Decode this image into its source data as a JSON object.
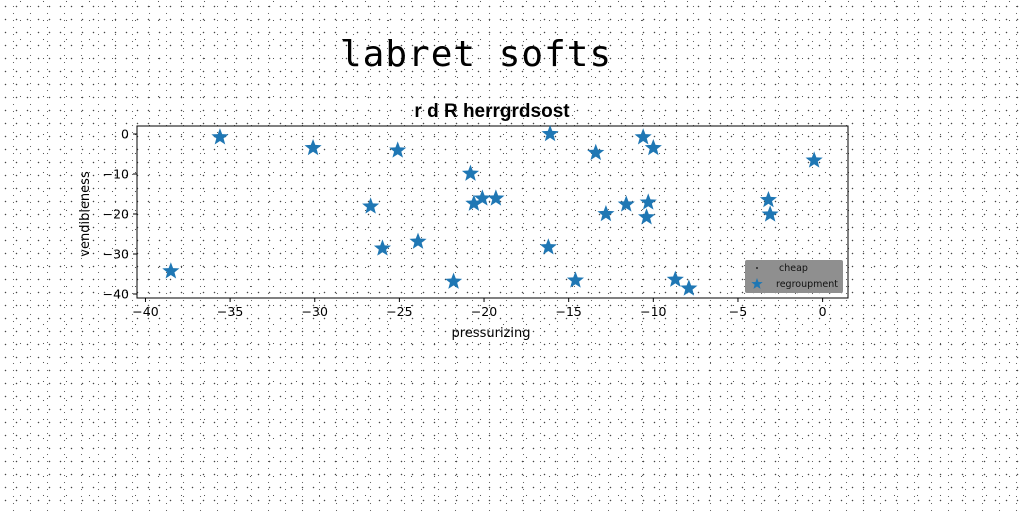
{
  "suptitle": "labret softs",
  "chart_data": {
    "type": "scatter",
    "title": "r d R herrgrdsost",
    "xlabel": "pressurizing",
    "ylabel": "vendibleness",
    "xlim": [
      -40.5,
      1.5
    ],
    "ylim": [
      -41,
      2
    ],
    "xticks": [
      -40,
      -35,
      -30,
      -25,
      -20,
      -15,
      -10,
      -5,
      0
    ],
    "xtick_labels": [
      "−40",
      "−35",
      "−30",
      "−25",
      "−20",
      "−15",
      "−10",
      "−5",
      "0"
    ],
    "yticks": [
      0,
      -10,
      -20,
      -30,
      -40
    ],
    "ytick_labels": [
      "0",
      "−10",
      "−20",
      "−30",
      "−40"
    ],
    "grid": false,
    "legend_position": "lower-right",
    "series": [
      {
        "name": "cheap",
        "marker": "point",
        "color": "#000000",
        "x": [],
        "y": []
      },
      {
        "name": "regroupment",
        "marker": "star",
        "color": "#1f77b4",
        "x": [
          -38.5,
          -35.6,
          -30.1,
          -26.7,
          -26.0,
          -25.1,
          -23.9,
          -21.8,
          -20.8,
          -20.6,
          -20.1,
          -19.3,
          -16.2,
          -16.1,
          -14.6,
          -13.4,
          -12.8,
          -11.6,
          -10.6,
          -10.4,
          -10.3,
          -10.0,
          -8.7,
          -7.9,
          -3.2,
          -3.1,
          -0.5
        ],
        "y": [
          -34.3,
          -0.8,
          -3.5,
          -18.1,
          -28.6,
          -4.1,
          -26.9,
          -36.9,
          -9.9,
          -17.4,
          -16.1,
          -16.1,
          -28.3,
          0.0,
          -36.6,
          -4.7,
          -20.0,
          -17.6,
          -0.8,
          -20.8,
          -17.1,
          -3.5,
          -36.4,
          -38.6,
          -16.5,
          -20.1,
          -6.6
        ]
      }
    ]
  }
}
